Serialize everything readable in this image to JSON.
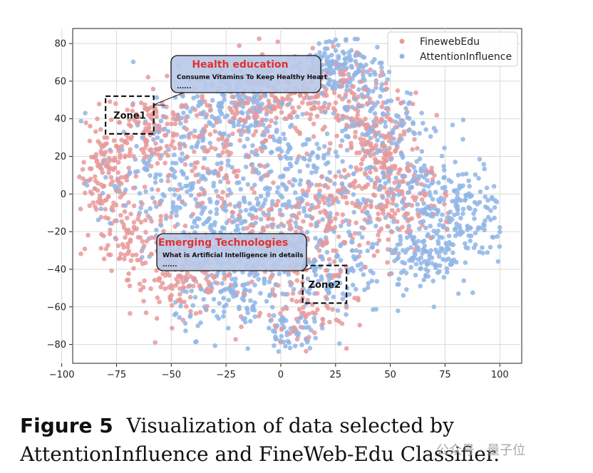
{
  "chart_data": {
    "type": "scatter",
    "xlim": [
      -95,
      110
    ],
    "ylim": [
      -90,
      88
    ],
    "xticks": [
      -100,
      -75,
      -50,
      -25,
      0,
      25,
      50,
      75,
      100
    ],
    "yticks": [
      -80,
      -60,
      -40,
      -20,
      0,
      20,
      40,
      60,
      80
    ],
    "grid": true,
    "legend_position": "top-right",
    "series": [
      {
        "name": "FinewebEdu",
        "color": "#e8999a",
        "clusters": [
          {
            "cx": -80,
            "cy": 10,
            "sx": 6,
            "sy": 12,
            "n": 110
          },
          {
            "cx": -60,
            "cy": 35,
            "sx": 10,
            "sy": 12,
            "n": 140
          },
          {
            "cx": -45,
            "cy": -45,
            "sx": 12,
            "sy": 10,
            "n": 150
          },
          {
            "cx": -25,
            "cy": 20,
            "sx": 14,
            "sy": 18,
            "n": 150
          },
          {
            "cx": 0,
            "cy": -30,
            "sx": 14,
            "sy": 14,
            "n": 140
          },
          {
            "cx": 15,
            "cy": 55,
            "sx": 14,
            "sy": 10,
            "n": 150
          },
          {
            "cx": 45,
            "cy": 25,
            "sx": 10,
            "sy": 14,
            "n": 160
          },
          {
            "cx": 55,
            "cy": -5,
            "sx": 12,
            "sy": 12,
            "n": 120
          },
          {
            "cx": 25,
            "cy": -10,
            "sx": 12,
            "sy": 14,
            "n": 120
          },
          {
            "cx": -5,
            "cy": 50,
            "sx": 12,
            "sy": 12,
            "n": 110
          },
          {
            "cx": -70,
            "cy": -20,
            "sx": 8,
            "sy": 10,
            "n": 90
          },
          {
            "cx": 10,
            "cy": -65,
            "sx": 12,
            "sy": 8,
            "n": 60
          }
        ]
      },
      {
        "name": "AttentionInfluence",
        "color": "#8fb5e6",
        "clusters": [
          {
            "cx": -55,
            "cy": 10,
            "sx": 14,
            "sy": 18,
            "n": 170
          },
          {
            "cx": -20,
            "cy": 45,
            "sx": 14,
            "sy": 12,
            "n": 160
          },
          {
            "cx": 25,
            "cy": 70,
            "sx": 8,
            "sy": 8,
            "n": 130
          },
          {
            "cx": 40,
            "cy": 45,
            "sx": 10,
            "sy": 12,
            "n": 130
          },
          {
            "cx": 0,
            "cy": 10,
            "sx": 16,
            "sy": 16,
            "n": 180
          },
          {
            "cx": 20,
            "cy": -35,
            "sx": 14,
            "sy": 16,
            "n": 170
          },
          {
            "cx": 80,
            "cy": -10,
            "sx": 12,
            "sy": 14,
            "n": 200
          },
          {
            "cx": 65,
            "cy": -35,
            "sx": 8,
            "sy": 8,
            "n": 100
          },
          {
            "cx": -20,
            "cy": -55,
            "sx": 14,
            "sy": 10,
            "n": 130
          },
          {
            "cx": -25,
            "cy": -20,
            "sx": 14,
            "sy": 12,
            "n": 150
          },
          {
            "cx": 55,
            "cy": 10,
            "sx": 12,
            "sy": 14,
            "n": 130
          },
          {
            "cx": 5,
            "cy": -75,
            "sx": 8,
            "sy": 6,
            "n": 50
          }
        ]
      }
    ],
    "annotations": [
      {
        "title": "Health education",
        "text": "Consume Vitamins To Keep Healthy Heart",
        "more": "......",
        "zone": "Zone1",
        "zone_x": [
          -80,
          -58
        ],
        "zone_y": [
          32,
          52
        ]
      },
      {
        "title": "Emerging Technologies",
        "text": "What is Artificial Intelligence in details",
        "more": "......",
        "zone": "Zone2",
        "zone_x": [
          10,
          30
        ],
        "zone_y": [
          -58,
          -38
        ]
      }
    ]
  },
  "caption": {
    "label": "Figure 5",
    "text": "Visualization of data selected by AttentionInfluence and FineWeb-Edu Classifier."
  },
  "watermark": "公众号 · 量子位"
}
